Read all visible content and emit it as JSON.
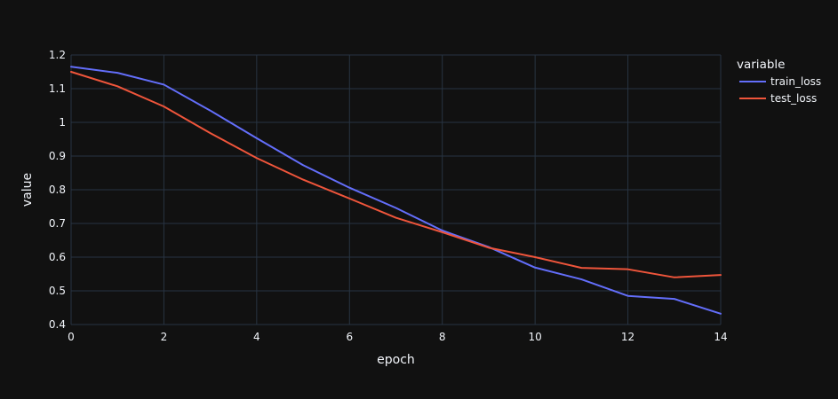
{
  "chart_data": {
    "type": "line",
    "title": "",
    "xlabel": "epoch",
    "ylabel": "value",
    "xlim": [
      0,
      14
    ],
    "ylim": [
      0.4,
      1.2
    ],
    "grid": true,
    "legend": {
      "title": "variable",
      "placement": "right-top"
    },
    "x_ticks": [
      0,
      2,
      4,
      6,
      8,
      10,
      12,
      14
    ],
    "x_tick_labels": [
      "0",
      "2",
      "4",
      "6",
      "8",
      "10",
      "12",
      "14"
    ],
    "y_ticks": [
      0.4,
      0.5,
      0.6,
      0.7,
      0.8,
      0.9,
      1.0,
      1.1,
      1.2
    ],
    "y_tick_labels": [
      "0.4",
      "0.5",
      "0.6",
      "0.7",
      "0.8",
      "0.9",
      "1",
      "1.1",
      "1.2"
    ],
    "x": [
      0,
      1,
      2,
      3,
      4,
      5,
      6,
      7,
      8,
      9,
      10,
      11,
      12,
      13,
      14
    ],
    "series": [
      {
        "name": "train_loss",
        "color": "#636efa",
        "values": [
          1.165,
          1.147,
          1.112,
          1.035,
          0.953,
          0.873,
          0.806,
          0.746,
          0.679,
          0.63,
          0.569,
          0.534,
          0.485,
          0.476,
          0.432
        ]
      },
      {
        "name": "test_loss",
        "color": "#ef553b",
        "values": [
          1.15,
          1.107,
          1.047,
          0.968,
          0.894,
          0.83,
          0.774,
          0.717,
          0.674,
          0.628,
          0.6,
          0.568,
          0.564,
          0.54,
          0.547
        ]
      }
    ]
  }
}
